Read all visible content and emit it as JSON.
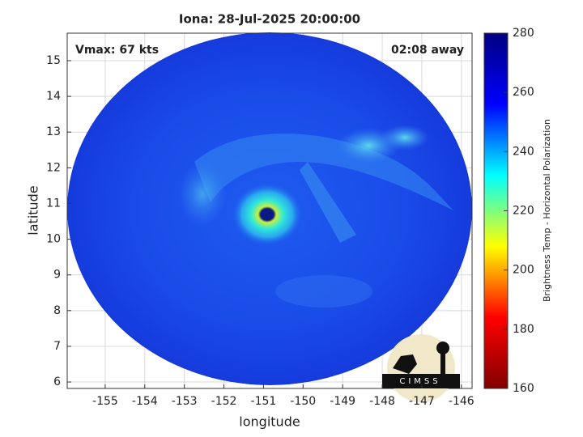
{
  "chart_data": {
    "type": "image",
    "title": "Iona: 28-Jul-2025 20:00:00",
    "annotations": [
      "Vmax: 67 kts",
      "02:08 away"
    ],
    "xlabel": "longitude",
    "ylabel": "latitude",
    "xlim": [
      -155.96,
      -145.73
    ],
    "xticks": [
      -155,
      -154,
      -153,
      -152,
      -151,
      -150,
      -149,
      -148,
      -147,
      -146
    ],
    "ylim": [
      5.82,
      15.77
    ],
    "yticks": [
      6,
      7,
      8,
      9,
      10,
      11,
      12,
      13,
      14,
      15
    ],
    "grid": true,
    "colorbar": {
      "label": "Brightness Temp - Horizontal Polarization",
      "colormap": "jet",
      "clim": [
        160,
        280
      ],
      "ticks": [
        160,
        180,
        200,
        220,
        240,
        260,
        280
      ]
    },
    "logo_text": "CIMSS"
  }
}
